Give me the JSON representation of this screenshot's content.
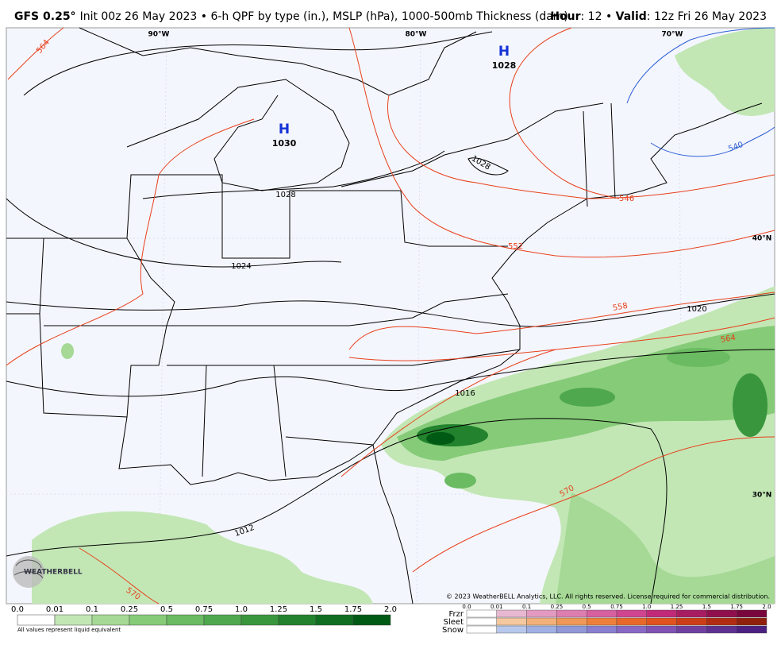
{
  "header": {
    "model": "GFS 0.25°",
    "description": "Init 00z 26 May 2023 • 6-h QPF by type (in.), MSLP (hPa), 1000-500mb Thickness (dam)",
    "hour_label": "Hour",
    "hour_value": ": 12 • ",
    "valid_label": "Valid",
    "valid_value": ": 12z Fri 26 May 2023"
  },
  "map": {
    "longitude_labels": [
      "90°W",
      "80°W",
      "70°W"
    ],
    "latitude_labels": [
      "40°N",
      "30°N"
    ],
    "highs": [
      {
        "symbol": "H",
        "pressure": "1030"
      },
      {
        "symbol": "H",
        "pressure": "1028"
      }
    ],
    "isobar_labels": [
      "1028",
      "1028",
      "1024",
      "1020",
      "1016",
      "1012"
    ],
    "thickness_labels": [
      "564",
      "546",
      "552",
      "558",
      "564",
      "570",
      "570",
      "540"
    ],
    "logo": "WEATHERBELL",
    "copyright": "© 2023 WeatherBELL Analytics, LLC. All rights reserved. License required for commercial distribution."
  },
  "legend": {
    "qpf_ticks": [
      "0.0",
      "0.01",
      "0.1",
      "0.25",
      "0.5",
      "0.75",
      "1.0",
      "1.25",
      "1.5",
      "1.75",
      "2.0"
    ],
    "note": "All values represent liquid equivalent",
    "type_ticks": [
      "0.0",
      "0.01",
      "0.1",
      "0.25",
      "0.5",
      "0.75",
      "1.0",
      "1.25",
      "1.5",
      "1.75",
      "2.0"
    ],
    "types": [
      "Frzr",
      "Sleet",
      "Snow"
    ]
  }
}
